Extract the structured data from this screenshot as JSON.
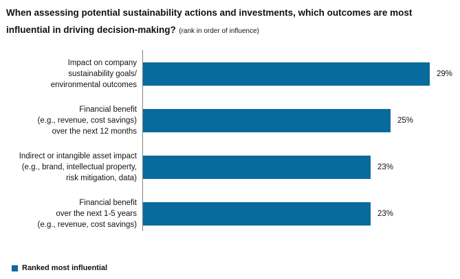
{
  "title": {
    "main": "When assessing potential sustainability actions and investments, which outcomes are most influential in driving decision-making?",
    "note": "(rank in order of influence)"
  },
  "legend": {
    "label": "Ranked most influential"
  },
  "colors": {
    "bar": "#096A9D",
    "axis": "#7f7f7f",
    "text": "#111111"
  },
  "chart_data": {
    "type": "bar",
    "orientation": "horizontal",
    "title": "When assessing potential sustainability actions and investments, which outcomes are most influential in driving decision-making?",
    "subtitle": "(rank in order of influence)",
    "categories": [
      "Impact on company sustainability goals/ environmental outcomes",
      "Financial benefit (e.g., revenue, cost savings) over the next 12 months",
      "Indirect or intangible asset impact (e.g., brand, intellectual property, risk mitigation, data)",
      "Financial benefit over the next 1-5 years (e.g., revenue, cost savings)"
    ],
    "category_lines": [
      [
        "Impact on company",
        "sustainability goals/",
        "environmental outcomes"
      ],
      [
        "Financial benefit",
        "(e.g., revenue, cost savings)",
        "over the next 12 months"
      ],
      [
        "Indirect or intangible asset impact",
        "(e.g., brand, intellectual property,",
        "risk mitigation, data)"
      ],
      [
        "Financial benefit",
        "over the next 1-5 years",
        "(e.g., revenue, cost savings)"
      ]
    ],
    "series": [
      {
        "name": "Ranked most influential",
        "values": [
          29,
          25,
          23,
          23
        ]
      }
    ],
    "values": [
      29,
      25,
      23,
      23
    ],
    "value_labels": [
      "29%",
      "25%",
      "23%",
      "23%"
    ],
    "xlabel": "",
    "ylabel": "",
    "xlim": [
      0,
      31.5
    ],
    "grid": false,
    "legend_position": "bottom-left",
    "bar_color": "#096A9D"
  }
}
